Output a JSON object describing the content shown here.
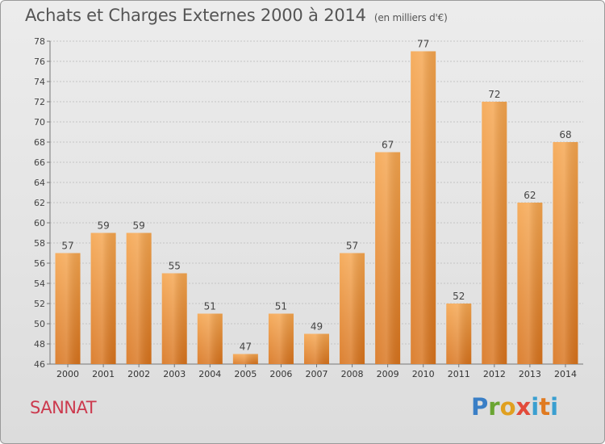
{
  "title": "Achats et Charges Externes 2000 à 2014",
  "unit": "(en milliers d'€)",
  "place": "SANNAT",
  "brand": {
    "c1": "P",
    "c2": "r",
    "c3": "o",
    "c4": "x",
    "c5": "i",
    "c6": "t",
    "c7": "i"
  },
  "colors": {
    "bar_top": "#f5a54e",
    "bar_bottom": "#d8731c",
    "title": "#555555",
    "place": "#cc3a4e"
  },
  "chart_data": {
    "type": "bar",
    "categories": [
      "2000",
      "2001",
      "2002",
      "2003",
      "2004",
      "2005",
      "2006",
      "2007",
      "2008",
      "2009",
      "2010",
      "2011",
      "2012",
      "2013",
      "2014"
    ],
    "values": [
      57,
      59,
      59,
      55,
      51,
      47,
      51,
      49,
      57,
      67,
      77,
      52,
      72,
      62,
      68
    ],
    "ylim": [
      46,
      78
    ],
    "yticks": [
      46,
      48,
      50,
      52,
      54,
      56,
      58,
      60,
      62,
      64,
      66,
      68,
      70,
      72,
      74,
      76,
      78
    ],
    "grid": true,
    "xlabel": "",
    "ylabel": ""
  }
}
